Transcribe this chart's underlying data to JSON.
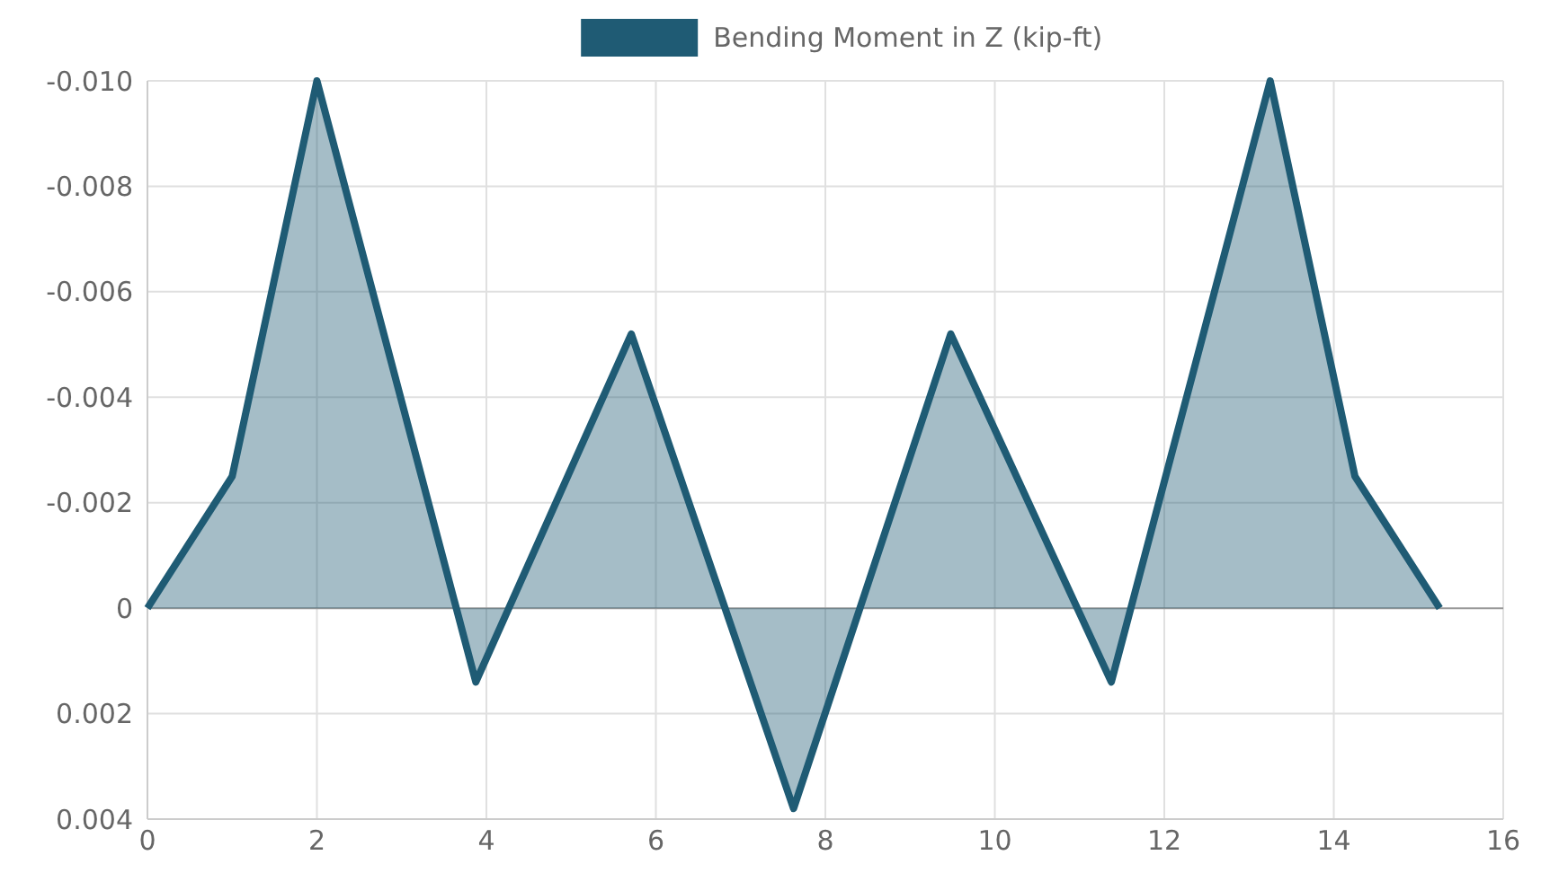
{
  "chart_data": {
    "type": "area",
    "x": [
      0,
      1,
      2,
      3.875,
      5.71,
      7.625,
      9.48,
      11.375,
      13.25,
      14.25,
      15.25
    ],
    "series": [
      {
        "name": "Bending Moment in Z (kip-ft)",
        "color": "#1f5b74",
        "values": [
          0,
          -0.0025,
          -0.01,
          0.0014,
          -0.0052,
          0.0038,
          -0.0052,
          0.0014,
          -0.01,
          -0.0025,
          0
        ]
      }
    ],
    "xlim": [
      0,
      16
    ],
    "xticks": [
      0,
      2,
      4,
      6,
      8,
      10,
      12,
      14,
      16
    ],
    "ylim": [
      0.004,
      -0.01
    ],
    "yticks": [
      {
        "value": -0.01,
        "label": "-0.010"
      },
      {
        "value": -0.008,
        "label": "-0.008"
      },
      {
        "value": -0.006,
        "label": "-0.006"
      },
      {
        "value": -0.004,
        "label": "-0.004"
      },
      {
        "value": -0.002,
        "label": "-0.002"
      },
      0,
      {
        "value": 0.002,
        "label": "0.002"
      },
      {
        "value": 0.004,
        "label": "0.004"
      }
    ],
    "grid": true,
    "legend": "top",
    "marker": "none",
    "line_style": "solid"
  }
}
